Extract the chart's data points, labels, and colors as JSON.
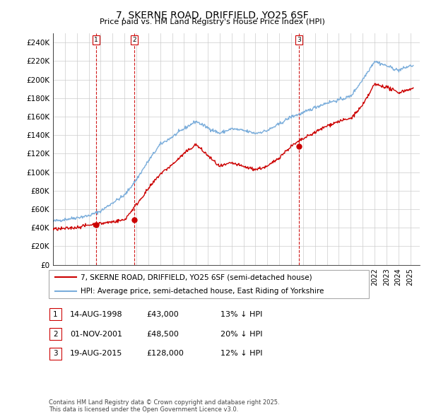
{
  "title": "7, SKERNE ROAD, DRIFFIELD, YO25 6SF",
  "subtitle": "Price paid vs. HM Land Registry's House Price Index (HPI)",
  "ylabel_ticks": [
    "£0",
    "£20K",
    "£40K",
    "£60K",
    "£80K",
    "£100K",
    "£120K",
    "£140K",
    "£160K",
    "£180K",
    "£200K",
    "£220K",
    "£240K"
  ],
  "ytick_values": [
    0,
    20000,
    40000,
    60000,
    80000,
    100000,
    120000,
    140000,
    160000,
    180000,
    200000,
    220000,
    240000
  ],
  "ylim": [
    0,
    250000
  ],
  "xlim_start": 1995.0,
  "xlim_end": 2025.8,
  "transactions": [
    {
      "label": "1",
      "date": 1998.617,
      "price": 43000
    },
    {
      "label": "2",
      "date": 2001.833,
      "price": 48500
    },
    {
      "label": "3",
      "date": 2015.633,
      "price": 128000
    }
  ],
  "house_color": "#cc0000",
  "hpi_color": "#7aaddb",
  "vline_color": "#cc0000",
  "grid_color": "#cccccc",
  "legend_box_color": "#cc0000",
  "footer_text": "Contains HM Land Registry data © Crown copyright and database right 2025.\nThis data is licensed under the Open Government Licence v3.0.",
  "legend_entries": [
    "7, SKERNE ROAD, DRIFFIELD, YO25 6SF (semi-detached house)",
    "HPI: Average price, semi-detached house, East Riding of Yorkshire"
  ],
  "table_rows": [
    [
      "1",
      "14-AUG-1998",
      "£43,000",
      "13% ↓ HPI"
    ],
    [
      "2",
      "01-NOV-2001",
      "£48,500",
      "20% ↓ HPI"
    ],
    [
      "3",
      "19-AUG-2015",
      "£128,000",
      "12% ↓ HPI"
    ]
  ],
  "hpi_years": [
    1995,
    1996,
    1997,
    1998,
    1999,
    2000,
    2001,
    2002,
    2003,
    2004,
    2005,
    2006,
    2007,
    2008,
    2009,
    2010,
    2011,
    2012,
    2013,
    2014,
    2015,
    2016,
    2017,
    2018,
    2019,
    2020,
    2021,
    2022,
    2023,
    2024,
    2025
  ],
  "hpi_prices": [
    47000,
    49000,
    51000,
    53000,
    58000,
    67000,
    75000,
    92000,
    112000,
    130000,
    138000,
    147000,
    155000,
    148000,
    142000,
    147000,
    145000,
    142000,
    145000,
    152000,
    160000,
    164000,
    170000,
    175000,
    178000,
    182000,
    200000,
    220000,
    215000,
    210000,
    215000
  ],
  "house_years": [
    1995,
    1996,
    1997,
    1998,
    1999,
    2000,
    2001,
    2002,
    2003,
    2004,
    2005,
    2006,
    2007,
    2008,
    2009,
    2010,
    2011,
    2012,
    2013,
    2014,
    2015,
    2016,
    2017,
    2018,
    2019,
    2020,
    2021,
    2022,
    2023,
    2024,
    2025
  ],
  "house_prices": [
    38500,
    39000,
    40500,
    43000,
    44500,
    46500,
    48500,
    65000,
    82000,
    98000,
    108000,
    120000,
    130000,
    118000,
    106000,
    110000,
    106000,
    103000,
    106000,
    116000,
    128000,
    136000,
    143000,
    150000,
    155000,
    158000,
    172000,
    195000,
    192000,
    186000,
    190000
  ]
}
